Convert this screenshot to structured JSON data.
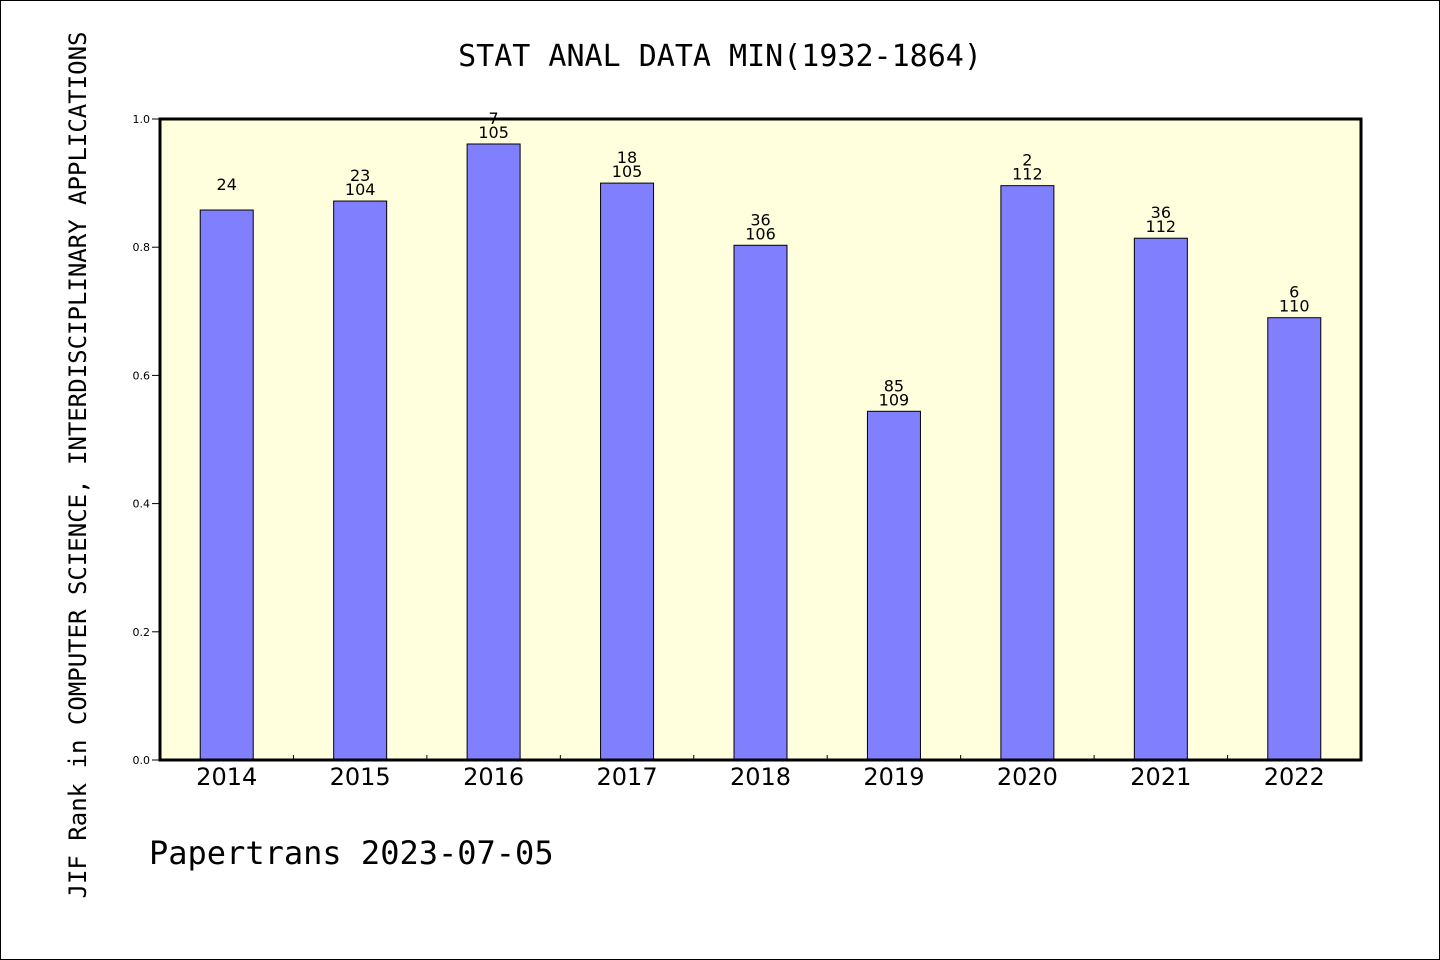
{
  "chart_data": {
    "type": "bar",
    "title": "STAT ANAL DATA MIN(1932-1864)",
    "ylabel": "JIF Rank in COMPUTER SCIENCE, INTERDISCIPLINARY APPLICATIONS",
    "xlabel": "",
    "footer": "Papertrans 2023-07-05",
    "categories": [
      "2014",
      "2015",
      "2016",
      "2017",
      "2018",
      "2019",
      "2020",
      "2021",
      "2022"
    ],
    "values": [
      0.858,
      0.872,
      0.961,
      0.9,
      0.803,
      0.544,
      0.896,
      0.814,
      0.69
    ],
    "labels_top": [
      "24",
      "23",
      "7",
      "18",
      "36",
      "85",
      "2",
      "36",
      "6"
    ],
    "labels_bottom": [
      "",
      "104",
      "105",
      "105",
      "106",
      "109",
      "112",
      "112",
      "110"
    ],
    "ylim": [
      0,
      1.0
    ],
    "yticks": [
      "0.0",
      "0.2",
      "0.4",
      "0.6",
      "0.8",
      "1.0"
    ],
    "grid": false,
    "colors": {
      "bar": "#8080ff",
      "plot_background": "#ffffdd",
      "frame": "#000000"
    }
  }
}
